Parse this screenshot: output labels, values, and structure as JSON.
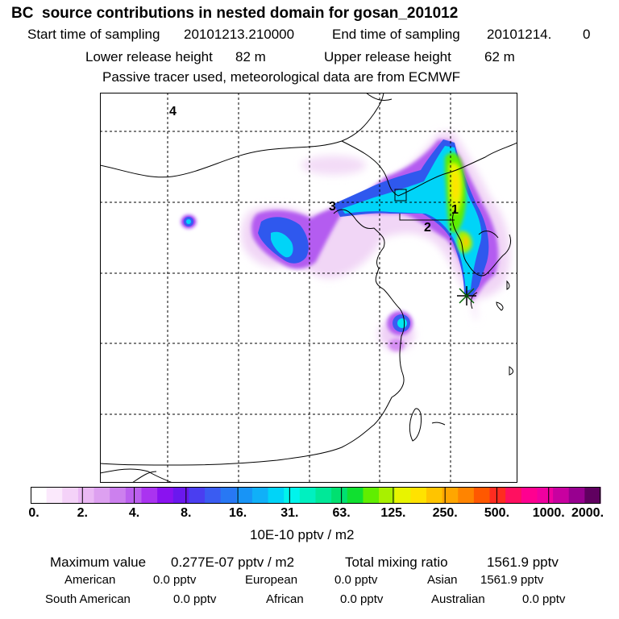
{
  "header": {
    "title": "BC  source contributions in nested domain for gosan_201012",
    "start_label": "Start time of sampling",
    "start_value": "20101213.210000",
    "end_label": "End time of sampling",
    "end_value": "20101214.",
    "end_extra": "0",
    "lower_label": "Lower release height",
    "lower_value": "82 m",
    "upper_label": "Upper release height",
    "upper_value": "62 m",
    "note": "Passive tracer used, meteorological data are from ECMWF"
  },
  "map": {
    "region_labels": [
      "4",
      "3",
      "2",
      "1"
    ],
    "receptor_marker": "gosan-receptor-star"
  },
  "colorbar": {
    "colors": [
      "#ffffff",
      "#fbe9fc",
      "#f4d2f8",
      "#eab8f4",
      "#dda0f0",
      "#cc80ee",
      "#bb60ee",
      "#aa33f0",
      "#8a12f0",
      "#6a18ee",
      "#4a3ef0",
      "#3a5cf2",
      "#2878f4",
      "#1894f6",
      "#10b0f8",
      "#00d4f8",
      "#00f4ec",
      "#00f0c0",
      "#00e898",
      "#00e070",
      "#10e030",
      "#60ee00",
      "#a8f000",
      "#e8f400",
      "#ffe200",
      "#ffc400",
      "#ffa600",
      "#ff8400",
      "#ff5800",
      "#ff2c20",
      "#ff1060",
      "#ff0090",
      "#f000a0",
      "#c800a0",
      "#980090",
      "#600060"
    ],
    "tick_labels": [
      "0.",
      "2.",
      "4.",
      "8.",
      "16.",
      "31.",
      "63.",
      "125.",
      "250.",
      "500.",
      "1000.",
      "2000."
    ],
    "unit": "10E-10 pptv / m2"
  },
  "footer": {
    "max_label": "Maximum value",
    "max_value": "0.277E-07 pptv / m2",
    "total_label": "Total mixing ratio",
    "total_value": "1561.9 pptv",
    "regions": [
      {
        "name": "American",
        "value": "0.0 pptv"
      },
      {
        "name": "European",
        "value": "0.0 pptv"
      },
      {
        "name": "Asian",
        "value": "1561.9 pptv"
      },
      {
        "name": "South American",
        "value": "0.0 pptv"
      },
      {
        "name": "African",
        "value": "0.0 pptv"
      },
      {
        "name": "Australian",
        "value": "0.0 pptv"
      }
    ]
  }
}
